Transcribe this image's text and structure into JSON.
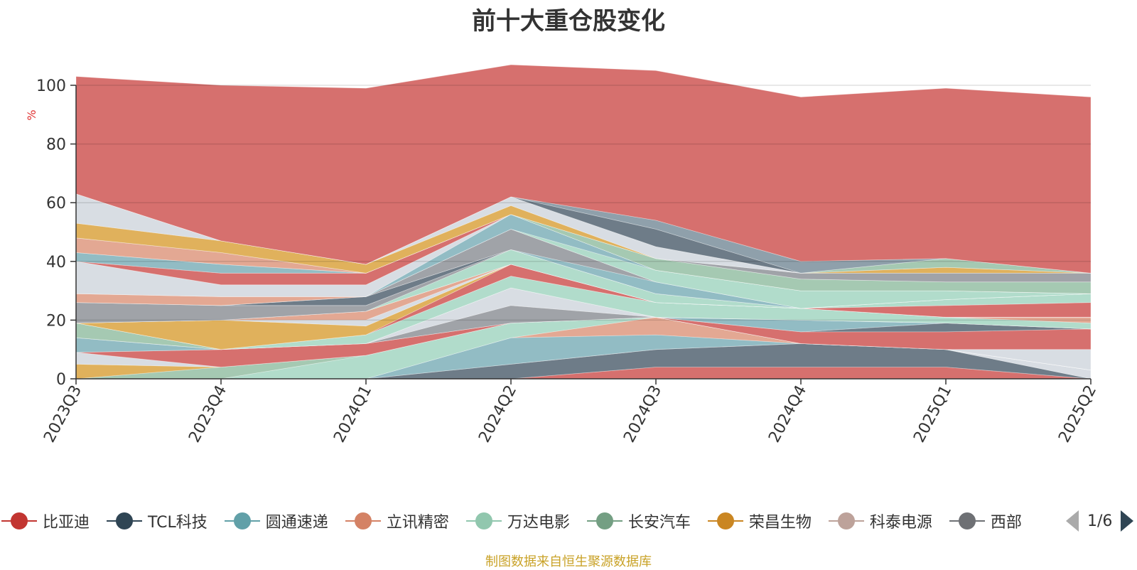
{
  "chart_data": {
    "type": "area",
    "title": "前十大重仓股变化",
    "ylabel": "%",
    "ylim": [
      0,
      100
    ],
    "yticks": [
      0,
      20,
      40,
      60,
      80,
      100
    ],
    "categories": [
      "2023Q3",
      "2023Q4",
      "2024Q1",
      "2024Q2",
      "2024Q3",
      "2024Q4",
      "2025Q1",
      "2025Q2"
    ],
    "grid": true,
    "stacked": true,
    "note": "",
    "series": [
      {
        "name": "",
        "color": "#8b6a72",
        "values": [
          0,
          0,
          0,
          0,
          0,
          0,
          0,
          0
        ]
      },
      {
        "name": "",
        "color": "#d6706e",
        "values": [
          0,
          0,
          0,
          0,
          4,
          4,
          4,
          0
        ]
      },
      {
        "name": "",
        "color": "#6e7c88",
        "values": [
          0,
          0,
          0,
          5,
          6,
          8,
          6,
          0
        ]
      },
      {
        "name": "",
        "color": "#d8dde3",
        "values": [
          0,
          0,
          0,
          0,
          0,
          0,
          0,
          3
        ]
      },
      {
        "name": "",
        "color": "#92bcc4",
        "values": [
          0,
          0,
          0,
          9,
          5,
          0,
          0,
          0
        ]
      },
      {
        "name": "",
        "color": "#e3a893",
        "values": [
          0,
          0,
          0,
          0,
          6,
          0,
          0,
          0
        ]
      },
      {
        "name": "",
        "color": "#b1dccb",
        "values": [
          0,
          0,
          8,
          5,
          0,
          0,
          0,
          0
        ]
      },
      {
        "name": "",
        "color": "#a5c9b2",
        "values": [
          0,
          4,
          0,
          0,
          0,
          0,
          0,
          0
        ]
      },
      {
        "name": "",
        "color": "#e0b15c",
        "values": [
          5,
          0,
          0,
          0,
          0,
          0,
          0,
          0
        ]
      },
      {
        "name": "",
        "color": "#d8dde3",
        "values": [
          4,
          0,
          0,
          0,
          0,
          0,
          0,
          7
        ]
      },
      {
        "name": "",
        "color": "#d6706e",
        "values": [
          0,
          6,
          4,
          0,
          0,
          4,
          6,
          7
        ]
      },
      {
        "name": "",
        "color": "#6e7c88",
        "values": [
          0,
          0,
          0,
          0,
          0,
          0,
          3,
          0
        ]
      },
      {
        "name": "",
        "color": "#92bcc4",
        "values": [
          5,
          0,
          0,
          0,
          0,
          4,
          0,
          0
        ]
      },
      {
        "name": "",
        "color": "#a0a3a8",
        "values": [
          0,
          0,
          0,
          6,
          0,
          0,
          0,
          0
        ]
      },
      {
        "name": "",
        "color": "#d8dde3",
        "values": [
          0,
          0,
          0,
          6,
          0,
          0,
          0,
          0
        ]
      },
      {
        "name": "",
        "color": "#a5c9b2",
        "values": [
          5,
          0,
          0,
          0,
          0,
          0,
          0,
          0
        ]
      },
      {
        "name": "",
        "color": "#b1dccb",
        "values": [
          0,
          0,
          3,
          4,
          5,
          4,
          2,
          2
        ]
      },
      {
        "name": "",
        "color": "#e3a893",
        "values": [
          0,
          0,
          0,
          0,
          0,
          0,
          0,
          2
        ]
      },
      {
        "name": "",
        "color": "#d6706e",
        "values": [
          0,
          0,
          0,
          4,
          0,
          0,
          0,
          0
        ]
      },
      {
        "name": "",
        "color": "#e0b15c",
        "values": [
          0,
          10,
          3,
          0,
          0,
          0,
          0,
          0
        ]
      },
      {
        "name": "",
        "color": "#d8dde3",
        "values": [
          0,
          0,
          2,
          0,
          0,
          0,
          0,
          0
        ]
      },
      {
        "name": "",
        "color": "#e3a893",
        "values": [
          0,
          0,
          3,
          0,
          0,
          0,
          0,
          0
        ]
      },
      {
        "name": "",
        "color": "#6e7c88",
        "values": [
          0,
          0,
          0,
          0,
          0,
          0,
          0,
          0
        ]
      },
      {
        "name": "",
        "color": "#d6706e",
        "values": [
          0,
          0,
          0,
          0,
          0,
          0,
          4,
          5
        ]
      },
      {
        "name": "",
        "color": "#b1dccb",
        "values": [
          0,
          0,
          0,
          5,
          3,
          0,
          2,
          3
        ]
      },
      {
        "name": "",
        "color": "#a0a3a8",
        "values": [
          7,
          5,
          2,
          0,
          0,
          0,
          0,
          0
        ]
      },
      {
        "name": "",
        "color": "#6e7c88",
        "values": [
          0,
          0,
          3,
          0,
          0,
          0,
          0,
          0
        ]
      },
      {
        "name": "",
        "color": "#92bcc4",
        "values": [
          0,
          0,
          0,
          0,
          4,
          0,
          0,
          0
        ]
      },
      {
        "name": "",
        "color": "#a0a3a8",
        "values": [
          0,
          0,
          0,
          7,
          0,
          0,
          0,
          0
        ]
      },
      {
        "name": "",
        "color": "#e3a893",
        "values": [
          3,
          3,
          0,
          0,
          0,
          0,
          0,
          0
        ]
      },
      {
        "name": "",
        "color": "#b1dccb",
        "values": [
          0,
          0,
          0,
          0,
          4,
          6,
          3,
          0
        ]
      },
      {
        "name": "",
        "color": "#92bcc4",
        "values": [
          0,
          0,
          0,
          5,
          0,
          0,
          0,
          0
        ]
      },
      {
        "name": "",
        "color": "#d8dde3",
        "values": [
          11,
          4,
          4,
          0,
          0,
          0,
          0,
          0
        ]
      },
      {
        "name": "",
        "color": "#d6706e",
        "values": [
          0,
          4,
          4,
          0,
          0,
          0,
          0,
          0
        ]
      },
      {
        "name": "",
        "color": "#92bcc4",
        "values": [
          3,
          3,
          0,
          0,
          0,
          0,
          0,
          0
        ]
      },
      {
        "name": "",
        "color": "#a5c9b2",
        "values": [
          0,
          0,
          0,
          0,
          4,
          4,
          3,
          4
        ]
      },
      {
        "name": "",
        "color": "#e3a893",
        "values": [
          5,
          4,
          0,
          0,
          0,
          0,
          0,
          0
        ]
      },
      {
        "name": "",
        "color": "#a0a3a8",
        "values": [
          0,
          0,
          0,
          0,
          0,
          2,
          3,
          3
        ]
      },
      {
        "name": "",
        "color": "#e0b15c",
        "values": [
          5,
          4,
          3,
          3,
          0,
          0,
          2,
          0
        ]
      },
      {
        "name": "",
        "color": "#d8dde3",
        "values": [
          10,
          0,
          0,
          3,
          4,
          0,
          0,
          0
        ]
      },
      {
        "name": "",
        "color": "#a5c9b2",
        "values": [
          0,
          0,
          0,
          0,
          0,
          0,
          3,
          0
        ]
      },
      {
        "name": "",
        "color": "#6e7c88",
        "values": [
          0,
          0,
          0,
          0,
          6,
          0,
          0,
          0
        ]
      },
      {
        "name": "",
        "color": "#8fa0ab",
        "values": [
          0,
          0,
          0,
          0,
          3,
          4,
          0,
          0
        ]
      },
      {
        "name": "",
        "color": "#d6706e",
        "values": [
          40,
          53,
          60,
          45,
          51,
          56,
          58,
          60
        ]
      }
    ]
  },
  "legend": {
    "items": [
      {
        "label": "比亚迪",
        "color": "#c23531"
      },
      {
        "label": "TCL科技",
        "color": "#2f4554"
      },
      {
        "label": "圆通速递",
        "color": "#61a0a8"
      },
      {
        "label": "立讯精密",
        "color": "#d48265"
      },
      {
        "label": "万达电影",
        "color": "#91c7ae"
      },
      {
        "label": "长安汽车",
        "color": "#749f83"
      },
      {
        "label": "荣昌生物",
        "color": "#ca8622"
      },
      {
        "label": "科泰电源",
        "color": "#bda29a"
      },
      {
        "label": "西部",
        "color": "#6e7074"
      }
    ],
    "page_text": "1/6"
  },
  "source_text": "制图数据来自恒生聚源数据库"
}
